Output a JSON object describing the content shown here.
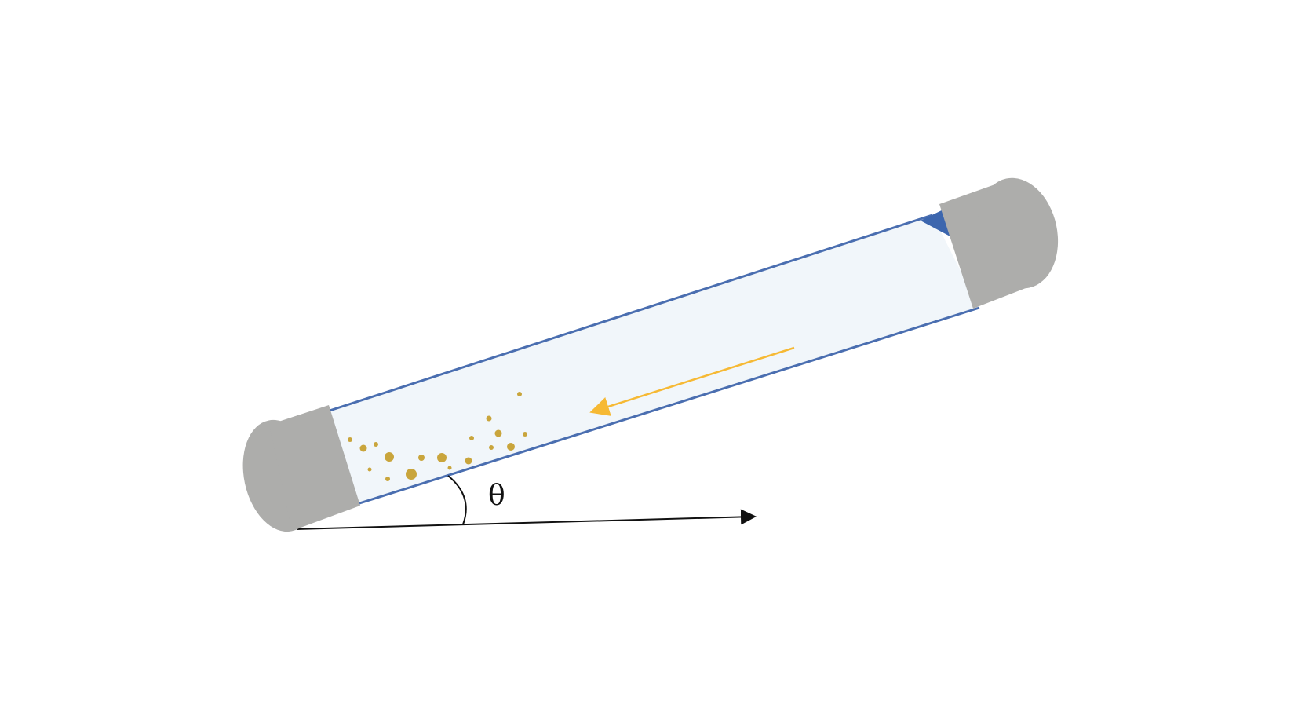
{
  "diagram": {
    "angle_symbol": "θ"
  },
  "colors": {
    "tube_fill": "#f1f6fa",
    "tube_outline": "#4a6eb0",
    "cap": "#adadab",
    "particle": "#c9a53c",
    "flow_arrow": "#f6b934",
    "valve": "#3c66ae",
    "axis": "#111111"
  },
  "icons": {
    "flow": "arrow-icon",
    "axis": "arrow-icon"
  }
}
